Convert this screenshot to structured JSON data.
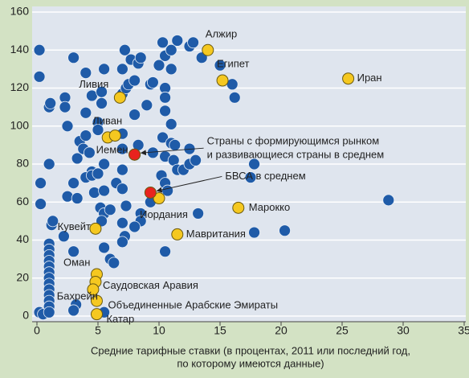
{
  "chart_data": {
    "type": "scatter",
    "xlabel": [
      "Средние тарифные ставки (в процентах, 2011 или последний год,",
      "по которому имеются данные)"
    ],
    "xlim": [
      0,
      35
    ],
    "xticks": [
      0,
      5,
      10,
      15,
      20,
      25,
      30,
      35
    ],
    "ylim": [
      0,
      160
    ],
    "yticks": [
      0,
      20,
      40,
      60,
      80,
      100,
      120,
      140,
      160
    ],
    "grid": true,
    "series": [
      {
        "color": "#1f5ba8",
        "x": [
          0.2,
          0.2,
          0.3,
          0.3,
          0.2,
          0.5,
          1,
          1,
          1,
          1,
          1,
          1,
          1,
          1,
          1,
          1,
          1,
          1,
          1,
          1.2,
          1,
          1,
          1.1,
          1.3,
          2.3,
          2.3,
          2.5,
          3,
          2.5,
          3,
          3.3,
          2.2,
          3,
          3.2,
          3.3,
          3.5,
          3.8,
          4,
          4,
          4.5,
          4,
          4.3,
          4.5,
          4,
          4.7,
          4.5,
          5,
          5,
          5.3,
          5.5,
          5.3,
          5.5,
          5,
          5.5,
          5.2,
          5.5,
          5.3,
          5.5,
          6,
          6,
          6.3,
          6.5,
          7,
          7.2,
          7,
          7.3,
          7,
          7,
          7,
          7,
          7,
          7.2,
          7,
          7.5,
          7.3,
          7.7,
          8,
          8.3,
          8.5,
          8.5,
          8,
          8,
          8.3,
          8.5,
          9,
          9.3,
          9.3,
          9.5,
          9.5,
          10,
          10.3,
          10.5,
          10.5,
          10.5,
          10.5,
          10.3,
          10.5,
          10.2,
          10.5,
          10.7,
          10.5,
          11,
          11,
          11.2,
          11.3,
          11,
          11,
          11.5,
          12,
          12.5,
          12.8,
          12.5,
          12.5,
          13,
          13.2,
          13.5,
          15,
          16,
          16.2,
          17.8,
          17.5,
          17.8,
          20.3,
          28.8,
          11.5,
          3,
          5.5
        ],
        "y": [
          140,
          126,
          70,
          59,
          2,
          1,
          38,
          35,
          32,
          29,
          26,
          23,
          20,
          17,
          14,
          11,
          8,
          5,
          2,
          48,
          80,
          110,
          112,
          50,
          115,
          110,
          100,
          136,
          63,
          70,
          62,
          42,
          34,
          6,
          83,
          92,
          88,
          128,
          107,
          116,
          95,
          86,
          76,
          73,
          65,
          74,
          102,
          98,
          118,
          130,
          112,
          80,
          75,
          66,
          57,
          54,
          50,
          36,
          56,
          30,
          28,
          70,
          130,
          140,
          117,
          120,
          96,
          88,
          77,
          67,
          49,
          42,
          39,
          122,
          58,
          135,
          106,
          90,
          54,
          50,
          47,
          124,
          133,
          136,
          111,
          122,
          60,
          123,
          86,
          132,
          144,
          137,
          120,
          115,
          108,
          94,
          84,
          74,
          70,
          66,
          34,
          101,
          91,
          82,
          90,
          130,
          140,
          77,
          77,
          142,
          144,
          80,
          88,
          82,
          54,
          136,
          132,
          122,
          115,
          80,
          73,
          44,
          45,
          61,
          145,
          3,
          2
        ]
      },
      {
        "color": "#f5c820",
        "x": [
          14,
          15.2,
          25.5,
          6.8,
          5.8,
          6.4,
          8,
          10,
          16.5,
          11.5,
          4.8,
          4.9,
          4.8,
          4.6,
          4.9,
          4.9
        ],
        "y": [
          140,
          124,
          125,
          115,
          94,
          95,
          85,
          62,
          57,
          43,
          46,
          22,
          18,
          14,
          8,
          1
        ],
        "labels": [
          "Алжир",
          "Египет",
          "Иран",
          "Ливия",
          "Ливан",
          null,
          "Иемен",
          "Иордания",
          "Марокко",
          "Мавритания",
          "Кувейт",
          "Оман",
          "Саудовская Аравия",
          "Бахрейн",
          "Объединенные Арабские Эмираты",
          "Катар"
        ]
      },
      {
        "color": "#e8231e",
        "x": [
          8,
          9.3
        ],
        "y": [
          85,
          65
        ],
        "labels": [
          [
            "Страны с формирующимся рынком",
            "и развивающиеся страны в среднем"
          ],
          [
            "БВСА в среднем"
          ]
        ]
      }
    ]
  }
}
